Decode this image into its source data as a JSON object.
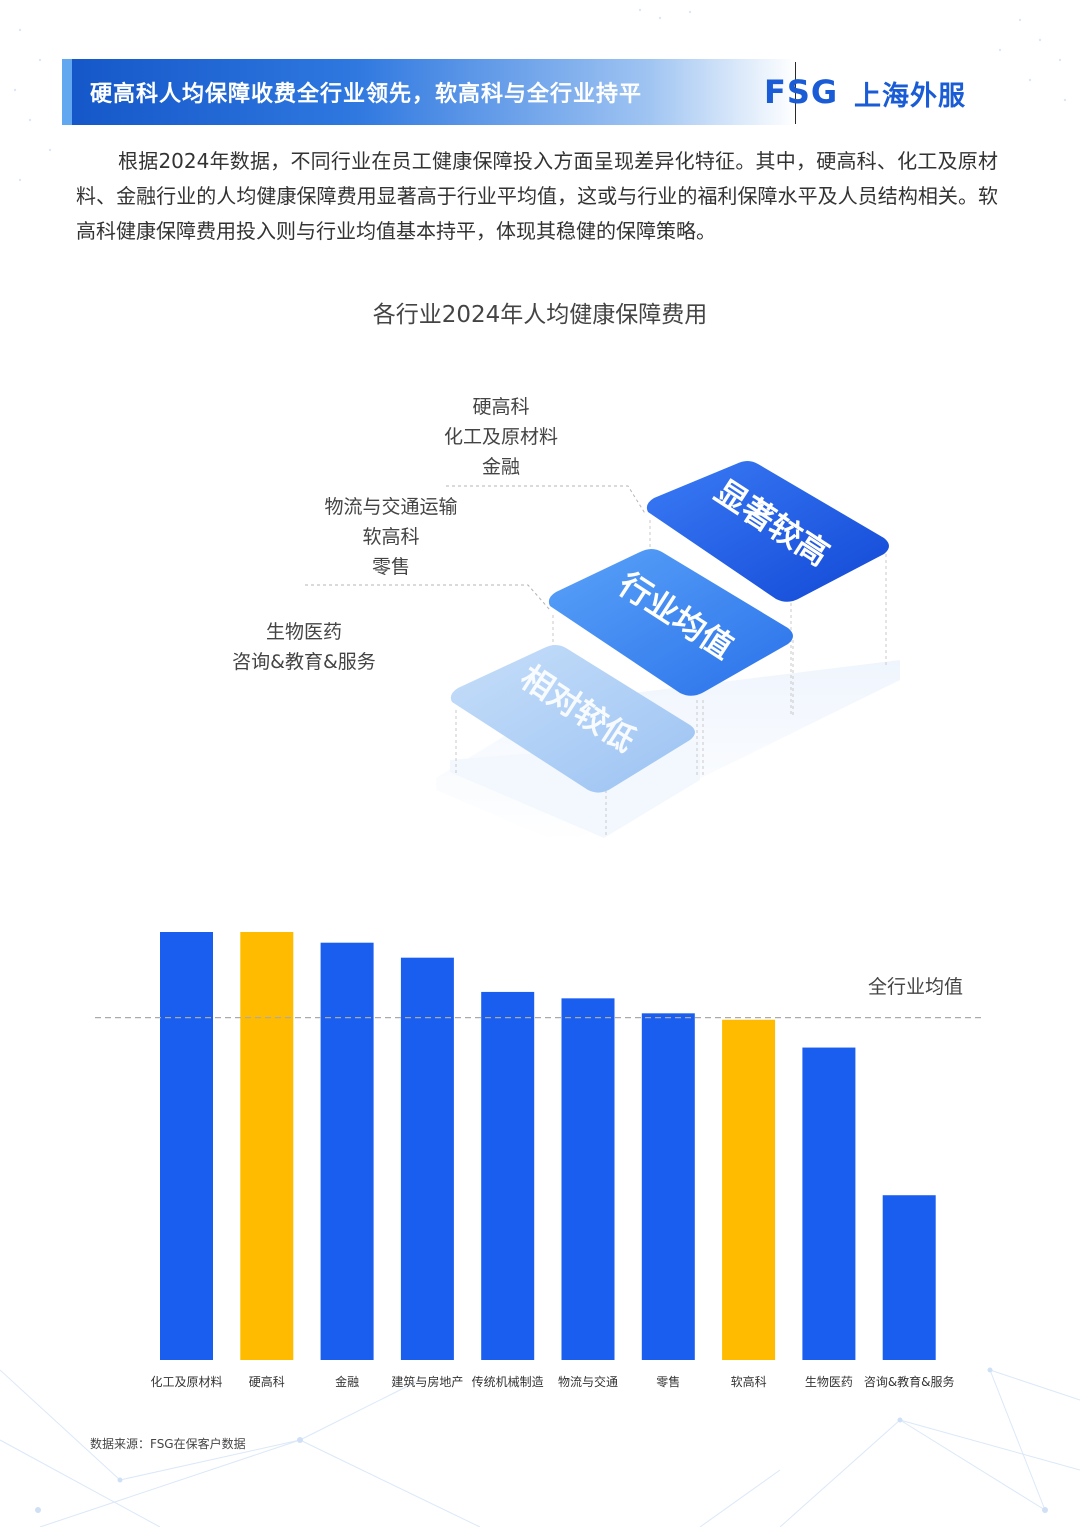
{
  "header": {
    "title": "硬高科人均保障收费全行业领先，软高科与全行业持平",
    "logo_fsg": "FSG",
    "logo_cn": "上海外服"
  },
  "intro": "根据2024年数据，不同行业在员工健康保障投入方面呈现差异化特征。其中，硬高科、化工及原材料、金融行业的人均健康保障费用显著高于行业平均值，这或与行业的福利保障水平及人员结构相关。软高科健康保障费用投入则与行业均值基本持平，体现其稳健的保障策略。",
  "chart_title": "各行业2024年人均健康保障费用",
  "tiers": [
    {
      "step": "显著较高",
      "industries": [
        "硬高科",
        "化工及原材料",
        "金融"
      ]
    },
    {
      "step": "行业均值",
      "industries": [
        "物流与交通运输",
        "软高科",
        "零售"
      ]
    },
    {
      "step": "相对较低",
      "industries": [
        "生物医药",
        "咨询&教育&服务"
      ]
    }
  ],
  "chart_data": {
    "type": "bar",
    "title": "",
    "xlabel": "",
    "ylabel": "",
    "categories": [
      "化工及原材料",
      "硬高科",
      "金融",
      "建筑与房地产",
      "传统机械制造",
      "物流与交通",
      "零售",
      "软高科",
      "生物医药",
      "咨询&教育&服务"
    ],
    "values": [
      100,
      100,
      97.5,
      94,
      86,
      84.5,
      81,
      79.5,
      73,
      38.5
    ],
    "highlight": [
      "硬高科",
      "软高科"
    ],
    "reference_line": {
      "label": "全行业均值",
      "value": 80
    },
    "ylim": [
      0,
      100
    ],
    "grid": false,
    "colors": {
      "bar": "#1a5ef0",
      "highlight": "#ffbb00",
      "reference": "#aaaaaa"
    }
  },
  "source": "数据来源：FSG在保客户数据"
}
